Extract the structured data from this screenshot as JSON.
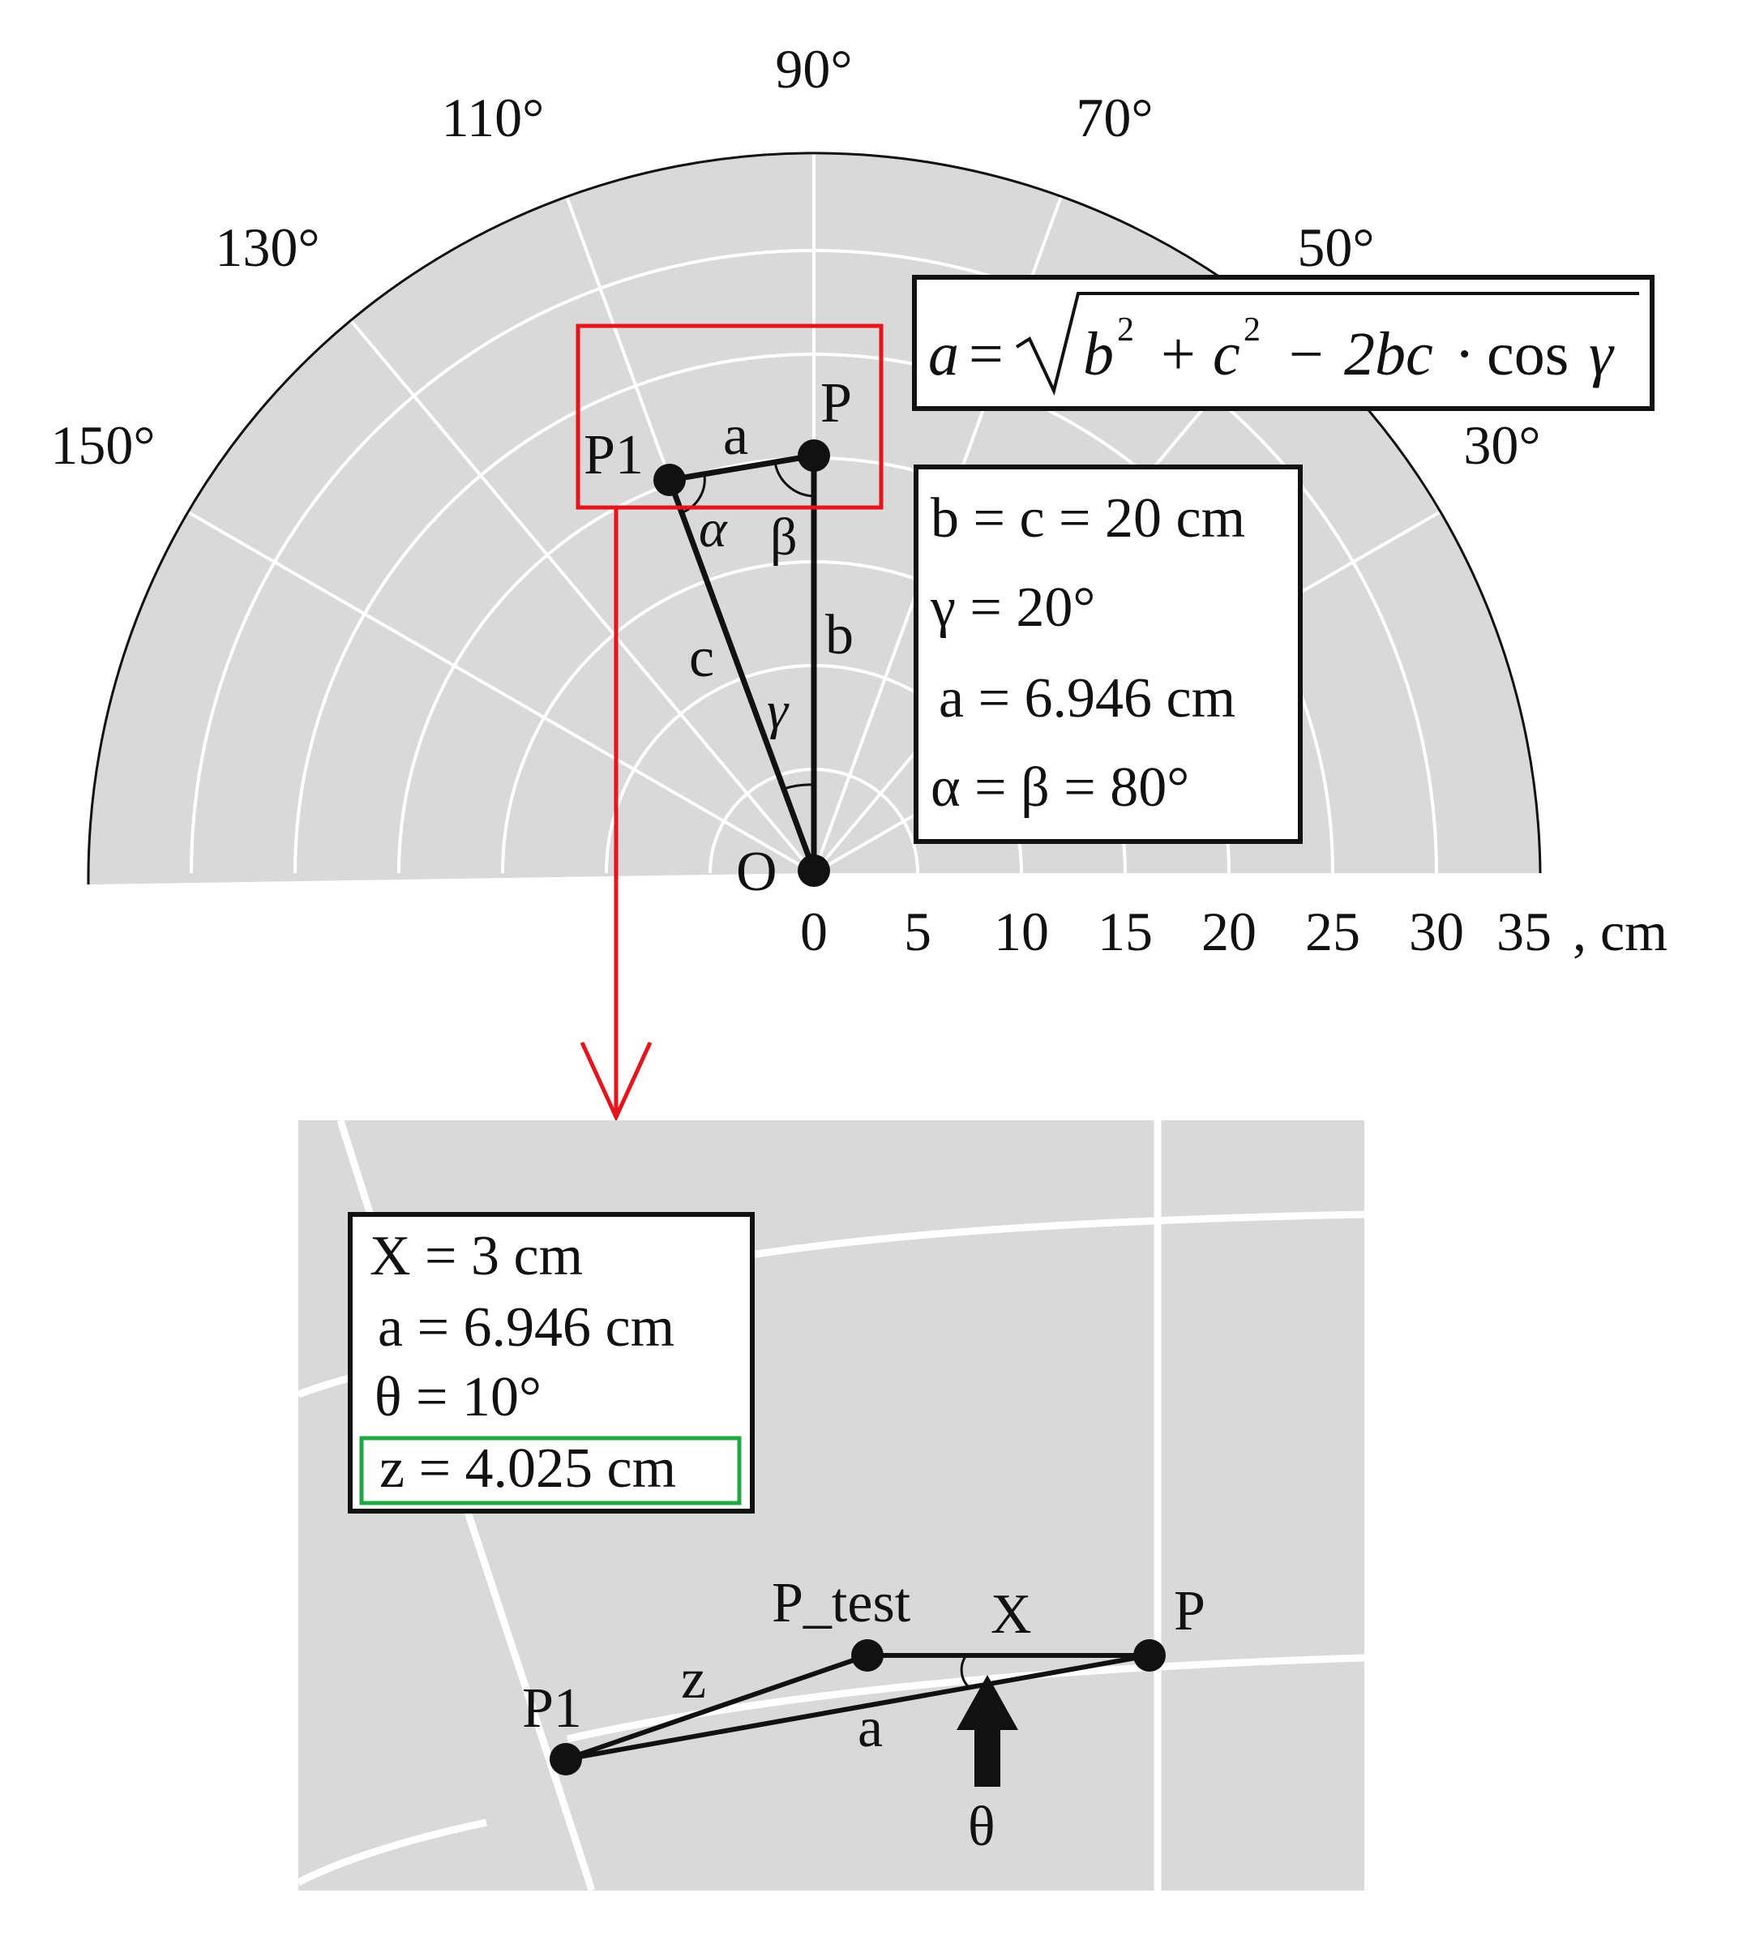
{
  "polar_plot": {
    "angle_labels": [
      "90°",
      "110°",
      "70°",
      "130°",
      "50°",
      "150°",
      "30°"
    ],
    "radial_ticks": [
      "0",
      "5",
      "10",
      "15",
      "20",
      "25",
      "30",
      "35"
    ],
    "radial_unit": ", cm",
    "colors": {
      "background": "#d9d9d9",
      "grid": "#ffffff",
      "highlight_box": "#e8141c",
      "result_box": "#22a745"
    }
  },
  "points": {
    "P": "P",
    "P1": "P1",
    "O": "O",
    "P_test": "P_test"
  },
  "segments": {
    "a": "a",
    "b": "b",
    "c": "c",
    "z": "z",
    "X": "X"
  },
  "angles": {
    "alpha": "α",
    "beta": "β",
    "gamma": "γ",
    "theta": "θ"
  },
  "formula": {
    "lhs": "a",
    "eq": "=",
    "b": "b",
    "plus": "+",
    "c": "c",
    "minus": "−",
    "two_bc": "2bc",
    "dot": "·",
    "cos": "cos",
    "gamma": "γ",
    "exp": "2"
  },
  "params_box": {
    "lines": [
      "b = c = 20 cm",
      "γ = 20°",
      "a = 6.946 cm",
      "α = β = 80°"
    ]
  },
  "zoom_box": {
    "lines": [
      "X = 3 cm",
      "a = 6.946 cm",
      "θ = 10°"
    ],
    "result": "z = 4.025 cm"
  }
}
